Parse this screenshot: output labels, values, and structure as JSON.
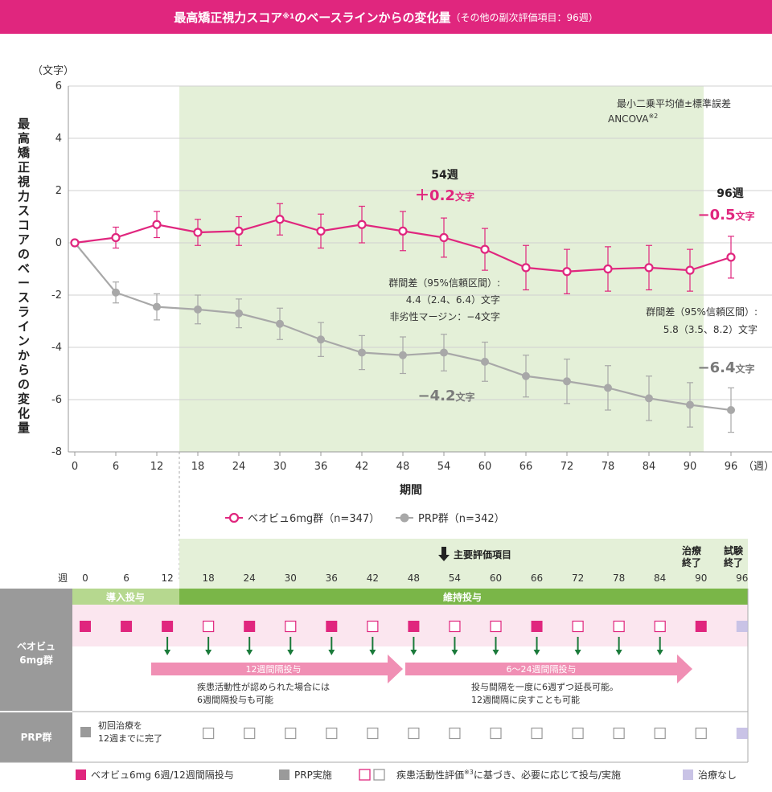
{
  "header": {
    "title": "最高矯正視力スコア",
    "sup": "※1",
    "title2": "のベースラインからの変化量",
    "sub": "（その他の副次評価項目：96週）"
  },
  "colors": {
    "accent": "#e0267e",
    "grey": "#a8a8a8",
    "green_bg": "#e4f0d8",
    "green_band": "#7ab648",
    "pink_bg": "#fbe6ef",
    "grey_label": "#9a9a9a",
    "arrow": "#1a7a3a",
    "arrow_pink": "#f08fb4",
    "none": "#c9c3e6"
  },
  "chart_data": {
    "type": "line",
    "title": "最高矯正視力スコアのベースラインからの変化量",
    "ylabel": "最高矯正視力スコアのベースラインからの変化量",
    "yunit": "（文字）",
    "xlabel": "期間",
    "xunit": "（週）",
    "ylim": [
      -8,
      6
    ],
    "yticks": [
      6,
      4,
      2,
      0,
      -2,
      -4,
      -6,
      -8
    ],
    "x": [
      0,
      6,
      12,
      18,
      24,
      30,
      36,
      42,
      48,
      54,
      60,
      66,
      72,
      78,
      84,
      90,
      96
    ],
    "series": [
      {
        "name": "ベオビュ6mg群（n=347）",
        "color": "#e0267e",
        "values": [
          0,
          0.2,
          0.7,
          0.4,
          0.45,
          0.9,
          0.45,
          0.7,
          0.45,
          0.2,
          -0.25,
          -0.95,
          -1.1,
          -1.0,
          -0.95,
          -1.05,
          -0.55
        ],
        "errors": [
          0,
          0.4,
          0.5,
          0.5,
          0.55,
          0.6,
          0.65,
          0.7,
          0.75,
          0.75,
          0.8,
          0.85,
          0.85,
          0.85,
          0.85,
          0.8,
          0.8
        ]
      },
      {
        "name": "PRP群（n=342）",
        "color": "#a8a8a8",
        "values": [
          0,
          -1.9,
          -2.45,
          -2.55,
          -2.7,
          -3.1,
          -3.7,
          -4.2,
          -4.3,
          -4.2,
          -4.55,
          -5.1,
          -5.3,
          -5.55,
          -5.95,
          -6.2,
          -6.4
        ],
        "errors": [
          0,
          0.4,
          0.5,
          0.55,
          0.55,
          0.6,
          0.65,
          0.65,
          0.7,
          0.7,
          0.75,
          0.8,
          0.85,
          0.85,
          0.85,
          0.85,
          0.85
        ]
      }
    ],
    "legend": [
      "ベオビュ6mg群（n=347）",
      "PRP群（n=342）"
    ],
    "method": [
      "最小二乗平均値±標準誤差",
      "ANCOVA"
    ],
    "method_sup": "※2",
    "annotations": {
      "w54_label": "54週",
      "w54_value": "＋0.2",
      "w54_unit": "文字",
      "w54_prp_value": "−4.2",
      "w54_prp_unit": "文字",
      "diff54_line1": "群間差（95%信頼区間）:",
      "diff54_line2": "4.4（2.4、6.4）文字",
      "diff54_line3": "非劣性マージン：−4文字",
      "w96_label": "96週",
      "w96_value": "−0.5",
      "w96_unit": "文字",
      "w96_prp_value": "−6.4",
      "w96_prp_unit": "文字",
      "diff96_line1": "群間差（95%信頼区間）:",
      "diff96_line2": "5.8（3.5、8.2）文字"
    }
  },
  "schedule": {
    "week_label": "週",
    "weeks": [
      "0",
      "6",
      "12",
      "18",
      "24",
      "30",
      "36",
      "42",
      "48",
      "54",
      "60",
      "66",
      "72",
      "78",
      "84",
      "90",
      "96"
    ],
    "primary_endpoint": "主要評価項目",
    "end_treatment": [
      "治療",
      "終了"
    ],
    "end_trial": [
      "試験",
      "終了"
    ],
    "induction": "導入投与",
    "maintenance": "維持投与",
    "group_beovu": [
      "ベオビュ",
      "6mg群"
    ],
    "group_prp": "PRP群",
    "beovu_marks": [
      "F",
      "F",
      "F",
      "O",
      "F",
      "O",
      "F",
      "O",
      "F",
      "O",
      "O",
      "F",
      "O",
      "O",
      "O",
      "F",
      "N"
    ],
    "prp_marks": [
      "O",
      "O",
      "O",
      "O",
      "O",
      "O",
      "O",
      "O",
      "O",
      "O",
      "O",
      "O",
      "O",
      "O"
    ],
    "band1": "12週間隔投与",
    "band2": "6〜24週間隔投与",
    "note1": [
      "疾患活動性が認められた場合には",
      "6週間隔投与も可能"
    ],
    "note2": [
      "投与間隔を一度に6週ずつ延長可能。",
      "12週間隔に戻すことも可能"
    ],
    "prp_note": [
      "初回治療を",
      "12週までに完了"
    ]
  },
  "legend_bottom": {
    "beovu": "ベオビュ6mg 6週/12週間隔投与",
    "prp": "PRP実施",
    "eval": "疾患活動性評価",
    "eval_sup": "※3",
    "eval_tail": "に基づき、必要に応じて投与/実施",
    "none": "治療なし"
  }
}
